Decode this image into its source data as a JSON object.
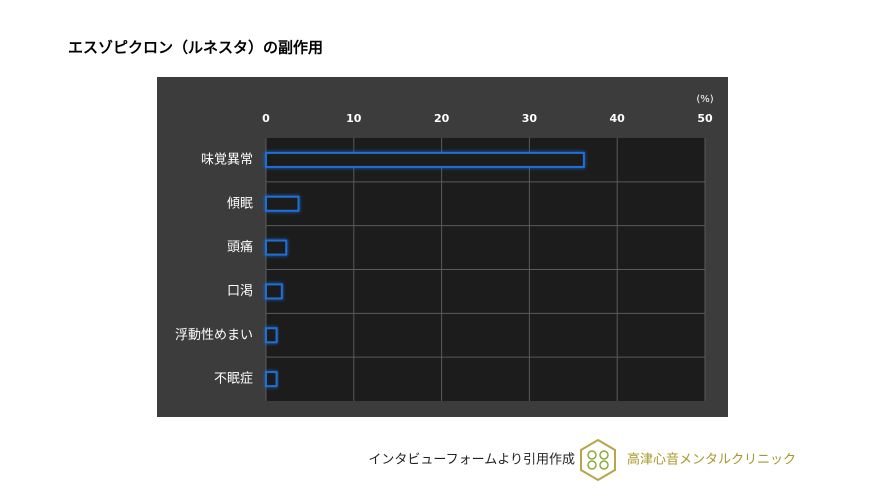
{
  "chart_data": {
    "type": "bar",
    "orientation": "horizontal",
    "title": "エスゾピクロン（ルネスタ）の副作用",
    "unit_label": "(%)",
    "categories": [
      "味覚異常",
      "傾眠",
      "頭痛",
      "口渇",
      "浮動性めまい",
      "不眠症"
    ],
    "values": [
      36.2,
      3.7,
      2.3,
      1.8,
      1.2,
      1.2
    ],
    "color": "#1f6fd6",
    "xlim": [
      0,
      50
    ],
    "xticks": [
      0,
      10,
      20,
      30,
      40,
      50
    ],
    "grid": true
  },
  "footer": {
    "source": "インタビューフォームより引用作成",
    "clinic": "高津心音メンタルクリニック"
  }
}
